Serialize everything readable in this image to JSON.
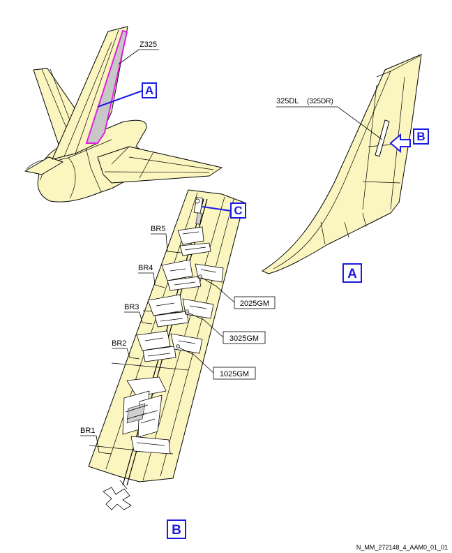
{
  "figure": {
    "reference_code": "N_MM_272148_4_AAM0_01_01"
  },
  "view_overview": {
    "zone_label": "Z325",
    "callout_a": "A"
  },
  "view_a": {
    "panel_label": "325DL",
    "panel_label_alt": "(325DR)",
    "callout_b": "B",
    "view_title": "A"
  },
  "view_b": {
    "callout_c": "C",
    "bracket_labels": [
      "BR5",
      "BR4",
      "BR3",
      "BR2",
      "BR1"
    ],
    "actuator_tags": [
      "2025GM",
      "3025GM",
      "1025GM"
    ],
    "view_title": "B"
  },
  "colors": {
    "skin": "#fbf6c0",
    "callout_blue": "#1a1ae6",
    "rudder_highlight": "#e020e0",
    "rudder_fill": "#c7c7c7"
  }
}
